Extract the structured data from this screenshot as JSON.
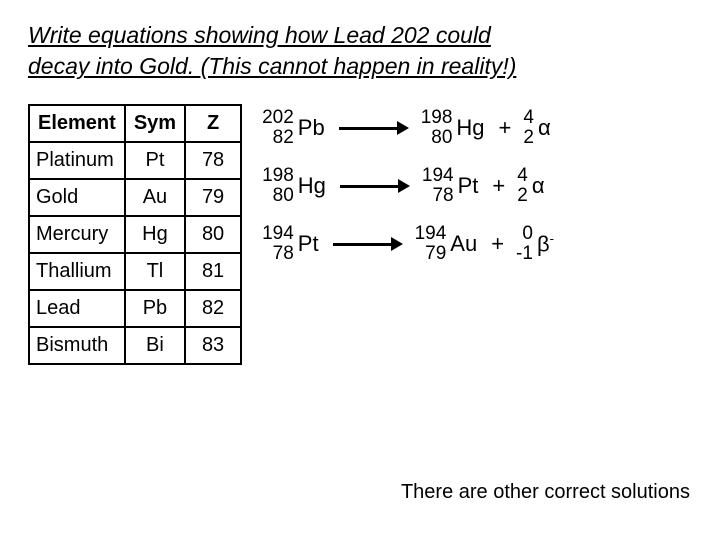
{
  "title_line1": "Write equations showing how Lead 202 could",
  "title_line2": "decay into Gold. (This cannot happen in reality!)",
  "table": {
    "headers": [
      "Element",
      "Sym",
      "Z"
    ],
    "rows": [
      [
        "Platinum",
        "Pt",
        "78"
      ],
      [
        "Gold",
        "Au",
        "79"
      ],
      [
        "Mercury",
        "Hg",
        "80"
      ],
      [
        "Thallium",
        "Tl",
        "81"
      ],
      [
        "Lead",
        "Pb",
        "82"
      ],
      [
        "Bismuth",
        "Bi",
        "83"
      ]
    ]
  },
  "equations": [
    {
      "lhs": {
        "mass": "202",
        "z": "82",
        "sym": "Pb"
      },
      "rhs1": {
        "mass": "198",
        "z": "80",
        "sym": "Hg"
      },
      "op": "+",
      "rhs2": {
        "mass": "4",
        "z": "2",
        "sym": "α"
      }
    },
    {
      "lhs": {
        "mass": "198",
        "z": "80",
        "sym": "Hg"
      },
      "rhs1": {
        "mass": "194",
        "z": "78",
        "sym": "Pt"
      },
      "op": "+",
      "rhs2": {
        "mass": "4",
        "z": "2",
        "sym": "α"
      }
    },
    {
      "lhs": {
        "mass": "194",
        "z": "78",
        "sym": "Pt"
      },
      "rhs1": {
        "mass": "194",
        "z": "79",
        "sym": "Au"
      },
      "op": "+",
      "rhs2": {
        "mass": "0",
        "z": "-1",
        "sym": "β",
        "sup": "-"
      }
    }
  ],
  "footer": "There are other correct solutions",
  "colors": {
    "background": "#ffffff",
    "text": "#000000",
    "border": "#000000",
    "arrow": "#000000"
  },
  "fonts": {
    "title_pt": 23,
    "body_pt": 20,
    "nuclide_sym_pt": 22,
    "nuclide_num_pt": 19
  }
}
